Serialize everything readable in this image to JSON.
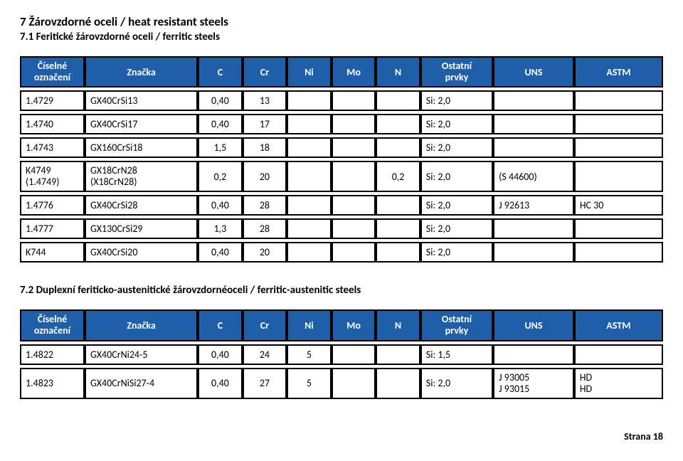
{
  "section_title": "7 Žárovzdorné oceli / heat resistant steels",
  "subsection_title": "7.1 Feritické žárovzdorné oceli / ferritic steels",
  "table1": {
    "headers": {
      "col0a": "Číselné",
      "col0b": "označení",
      "col1": "Značka",
      "col2": "C",
      "col3": "Cr",
      "col4": "Ni",
      "col5": "Mo",
      "col6": "N",
      "col7a": "Ostatní",
      "col7b": "prvky",
      "col8": "UNS",
      "col9": "ASTM"
    },
    "rows": [
      {
        "c0": "1.4729",
        "c1": "GX40CrSi13",
        "c2": "0,40",
        "c3": "13",
        "c4": "",
        "c5": "",
        "c6": "",
        "c7": "Si: 2,0",
        "c8": "",
        "c9": ""
      },
      {
        "c0": "1.4740",
        "c1": "GX40CrSi17",
        "c2": "0,40",
        "c3": "17",
        "c4": "",
        "c5": "",
        "c6": "",
        "c7": "Si: 2,0",
        "c8": "",
        "c9": ""
      },
      {
        "c0": "1.4743",
        "c1": "GX160CrSi18",
        "c2": "1,5",
        "c3": "18",
        "c4": "",
        "c5": "",
        "c6": "",
        "c7": "Si: 2,0",
        "c8": "",
        "c9": ""
      },
      {
        "c0": "K4749\n(1.4749)",
        "c1": "GX18CrN28\n(X18CrN28)",
        "c2": "0,2",
        "c3": "20",
        "c4": "",
        "c5": "",
        "c6": "0,2",
        "c7": "Si: 2,0",
        "c8": "(S 44600)",
        "c9": ""
      },
      {
        "c0": "1.4776",
        "c1": "GX40CrSi28",
        "c2": "0,40",
        "c3": "28",
        "c4": "",
        "c5": "",
        "c6": "",
        "c7": "Si: 2,0",
        "c8": "J 92613",
        "c9": "HC 30"
      },
      {
        "c0": "1.4777",
        "c1": "GX130CrSi29",
        "c2": "1,3",
        "c3": "28",
        "c4": "",
        "c5": "",
        "c6": "",
        "c7": "Si: 2,0",
        "c8": "",
        "c9": ""
      },
      {
        "c0": "K744",
        "c1": "GX40CrSi20",
        "c2": "0,40",
        "c3": "20",
        "c4": "",
        "c5": "",
        "c6": "",
        "c7": "Si: 2,0",
        "c8": "",
        "c9": ""
      }
    ],
    "col_widths": [
      "80px",
      "140px",
      "55px",
      "55px",
      "55px",
      "55px",
      "55px",
      "90px",
      "100px",
      "110px"
    ]
  },
  "subsection2_title": "7.2 Duplexní feriticko-austenitické žárovzdornéoceli / ferritic-austenitic steels",
  "table2": {
    "headers": {
      "col0a": "Číselné",
      "col0b": "označení",
      "col1": "Značka",
      "col2": "C",
      "col3": "Cr",
      "col4": "Ni",
      "col5": "Mo",
      "col6": "N",
      "col7a": "Ostatní",
      "col7b": "prvky",
      "col8": "UNS",
      "col9": "ASTM"
    },
    "rows": [
      {
        "c0": "1.4822",
        "c1": "GX40CrNi24-5",
        "c2": "0,40",
        "c3": "24",
        "c4": "5",
        "c5": "",
        "c6": "",
        "c7": "Si: 1,5",
        "c8": "",
        "c9": ""
      },
      {
        "c0": "1.4823",
        "c1": "GX40CrNiSi27-4",
        "c2": "0,40",
        "c3": "27",
        "c4": "5",
        "c5": "",
        "c6": "",
        "c7": "Si: 2,0",
        "c8": "J 93005\nJ 93015",
        "c9": "HD\nHD"
      }
    ],
    "col_widths": [
      "80px",
      "140px",
      "55px",
      "55px",
      "55px",
      "55px",
      "55px",
      "90px",
      "100px",
      "110px"
    ]
  },
  "footer": "Strana 18",
  "colors": {
    "header_bg": "#1f5ea8",
    "header_fg": "#ffffff",
    "border": "#000000",
    "page_bg": "#ffffff"
  }
}
